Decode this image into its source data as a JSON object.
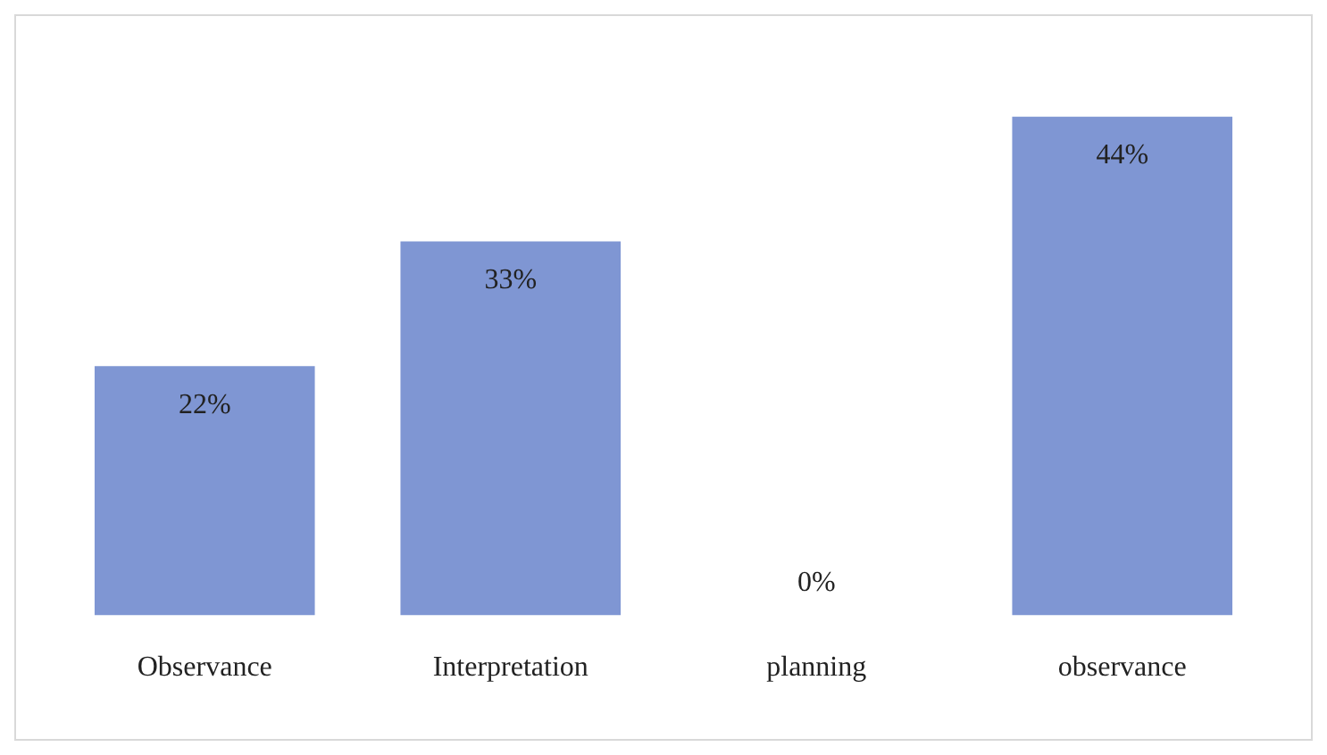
{
  "chart_data": {
    "type": "bar",
    "categories": [
      "Observance",
      "Interpretation",
      "planning",
      "observance"
    ],
    "values": [
      22,
      33,
      0,
      44
    ],
    "value_labels": [
      "22%",
      "33%",
      "0%",
      "44%"
    ],
    "color": "#7f96d3",
    "tick_labels": "x",
    "grid": false,
    "legend": false
  }
}
